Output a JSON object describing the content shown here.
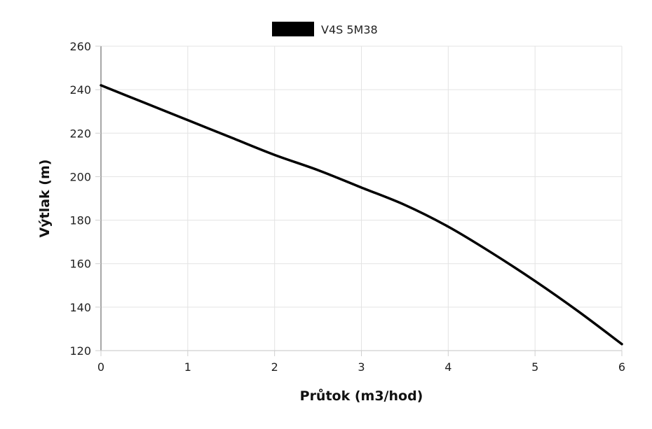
{
  "chart_data": {
    "type": "line",
    "title": "",
    "xlabel": "Průtok (m3/hod)",
    "ylabel": "Výtlak (m)",
    "xlim": [
      0,
      6
    ],
    "ylim": [
      120,
      260
    ],
    "x_ticks": [
      "0",
      "1",
      "2",
      "3",
      "4",
      "5",
      "6"
    ],
    "y_ticks": [
      "120",
      "140",
      "160",
      "180",
      "200",
      "220",
      "240",
      "260"
    ],
    "grid": true,
    "legend_position": "top-center",
    "series": [
      {
        "name": "V4S 5M38",
        "color": "#000000",
        "x": [
          0,
          0.5,
          1,
          1.5,
          2,
          2.5,
          3,
          3.5,
          4,
          4.5,
          5,
          5.5,
          6
        ],
        "y": [
          242,
          234,
          226,
          218,
          210,
          203,
          195,
          187,
          177,
          165,
          152,
          138,
          123
        ]
      }
    ]
  }
}
